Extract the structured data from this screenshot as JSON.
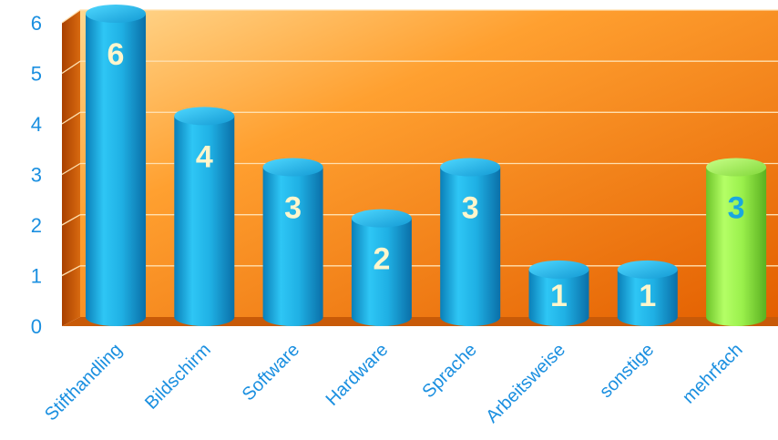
{
  "chart_data": {
    "type": "bar",
    "categories": [
      "Stifthandling",
      "Bildschirm",
      "Software",
      "Hardware",
      "Sprache",
      "Arbeitsweise",
      "sonstige",
      "mehrfach"
    ],
    "values": [
      6,
      4,
      3,
      2,
      3,
      1,
      1,
      3
    ],
    "ylim": [
      0,
      6
    ],
    "yticks": [
      "0",
      "1",
      "2",
      "3",
      "4",
      "5",
      "6"
    ],
    "grid": true,
    "legend": "none",
    "colors": {
      "bar_default": "#1fb6e8",
      "bar_highlight": "#99f04a",
      "label_default": "#fff6cc",
      "label_highlight": "#1aa7e0",
      "tick": "#1a8fe0",
      "wall_light": "#ffd27a",
      "wall_dark": "#e86400"
    },
    "highlight_index": 7
  }
}
